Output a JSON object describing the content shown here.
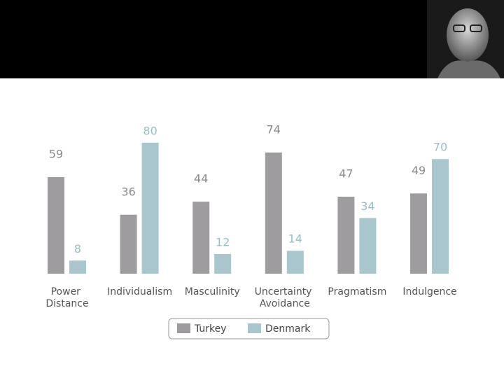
{
  "chart_data": {
    "type": "bar",
    "categories": [
      "Power Distance",
      "Individualism",
      "Masculinity",
      "Uncertainty Avoidance",
      "Pragmatism",
      "Indulgence"
    ],
    "series": [
      {
        "name": "Turkey",
        "color": "#9e9c9e",
        "values": [
          59,
          36,
          44,
          74,
          47,
          49
        ]
      },
      {
        "name": "Denmark",
        "color": "#a9c6cf",
        "values": [
          8,
          80,
          12,
          14,
          34,
          70
        ]
      }
    ]
  }
}
